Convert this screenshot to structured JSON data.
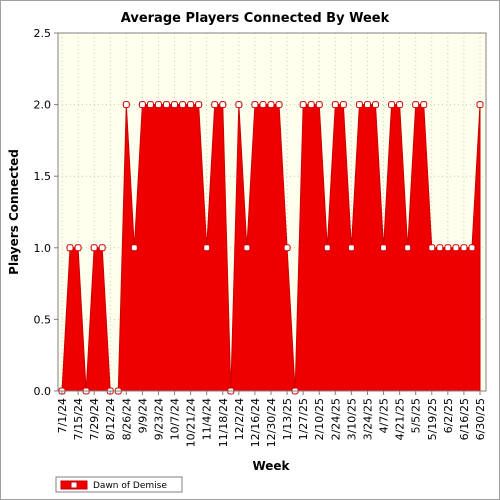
{
  "chart_data": {
    "type": "area",
    "title": "Average Players Connected By Week",
    "xlabel": "Week",
    "ylabel": "Players Connected",
    "ylim": [
      0,
      2.5
    ],
    "y_ticks": [
      "0.0",
      "0.5",
      "1.0",
      "1.5",
      "2.0",
      "2.5"
    ],
    "x_tick_labels": [
      "7/1/24",
      "7/15/24",
      "7/29/24",
      "8/12/24",
      "8/26/24",
      "9/9/24",
      "9/23/24",
      "10/7/24",
      "10/21/24",
      "11/4/24",
      "11/18/24",
      "12/2/24",
      "12/16/24",
      "12/30/24",
      "1/13/25",
      "1/27/25",
      "2/10/25",
      "2/24/25",
      "3/10/25",
      "3/24/25",
      "4/7/25",
      "4/21/25",
      "5/5/25",
      "5/19/25",
      "6/2/25",
      "6/16/25",
      "6/30/25"
    ],
    "grid": true,
    "legend_position": "bottom-left",
    "colors": {
      "fill": "#ee0000",
      "line": "#cc0000",
      "marker_fill": "#ffffff",
      "plot_background": "#ffffee",
      "grid": "#c8c8b4"
    },
    "series": [
      {
        "name": "Dawn of Demise",
        "values": [
          0,
          1,
          1,
          0,
          1,
          1,
          0,
          0,
          2,
          1,
          2,
          2,
          2,
          2,
          2,
          2,
          2,
          2,
          1,
          2,
          2,
          0,
          2,
          1,
          2,
          2,
          2,
          2,
          1,
          0,
          2,
          2,
          2,
          1,
          2,
          2,
          1,
          2,
          2,
          2,
          1,
          2,
          2,
          1,
          2,
          2,
          1,
          1,
          1,
          1,
          1,
          1,
          2
        ]
      }
    ]
  }
}
